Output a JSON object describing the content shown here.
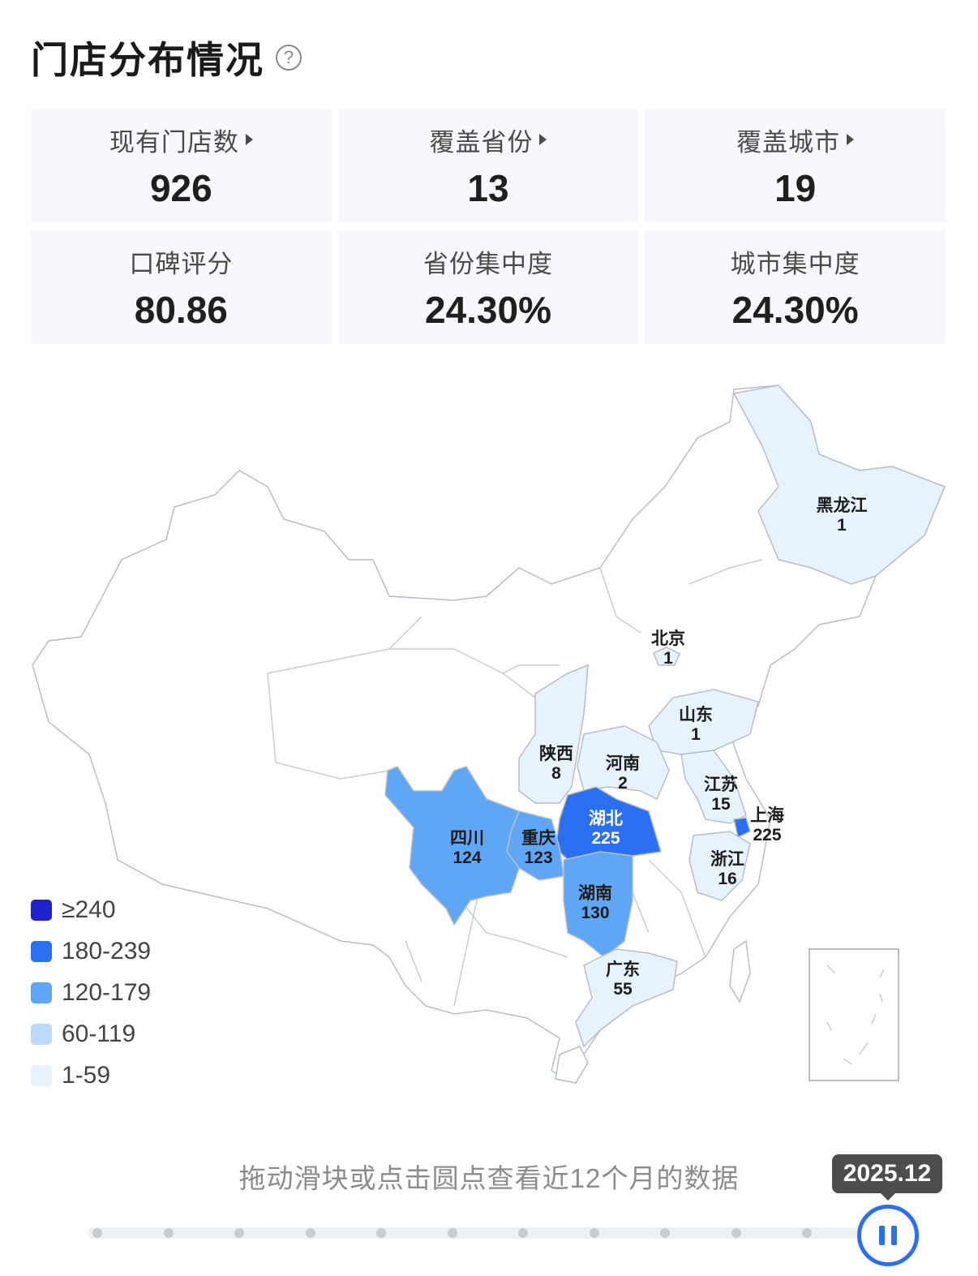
{
  "header": {
    "title": "门店分布情况",
    "help_glyph": "?"
  },
  "stats": [
    {
      "label": "现有门店数",
      "value": "926",
      "has_arrow": true
    },
    {
      "label": "覆盖省份",
      "value": "13",
      "has_arrow": true
    },
    {
      "label": "覆盖城市",
      "value": "19",
      "has_arrow": true
    },
    {
      "label": "口碑评分",
      "value": "80.86",
      "has_arrow": false
    },
    {
      "label": "省份集中度",
      "value": "24.30%",
      "has_arrow": false
    },
    {
      "label": "城市集中度",
      "value": "24.30%",
      "has_arrow": false
    }
  ],
  "map": {
    "provinces": [
      {
        "name": "黑龙江",
        "value": "1"
      },
      {
        "name": "北京",
        "value": "1"
      },
      {
        "name": "山东",
        "value": "1"
      },
      {
        "name": "陕西",
        "value": "8"
      },
      {
        "name": "河南",
        "value": "2"
      },
      {
        "name": "江苏",
        "value": "15"
      },
      {
        "name": "湖北",
        "value": "225"
      },
      {
        "name": "上海",
        "value": "225"
      },
      {
        "name": "四川",
        "value": "124"
      },
      {
        "name": "重庆",
        "value": "123"
      },
      {
        "name": "浙江",
        "value": "16"
      },
      {
        "name": "湖南",
        "value": "130"
      },
      {
        "name": "广东",
        "value": "55"
      }
    ],
    "legend": [
      {
        "label": "≥240",
        "color": "#1d22cc"
      },
      {
        "label": "180-239",
        "color": "#2b6ff2"
      },
      {
        "label": "120-179",
        "color": "#5fa6f5"
      },
      {
        "label": "60-119",
        "color": "#bcd9f8"
      },
      {
        "label": "1-59",
        "color": "#e6f3fd"
      }
    ]
  },
  "timeline": {
    "hint": "拖动滑块或点击圆点查看近12个月的数据",
    "current_label": "2025.12",
    "months": 12,
    "current_index": 11,
    "accent": "#2d6ef7"
  }
}
